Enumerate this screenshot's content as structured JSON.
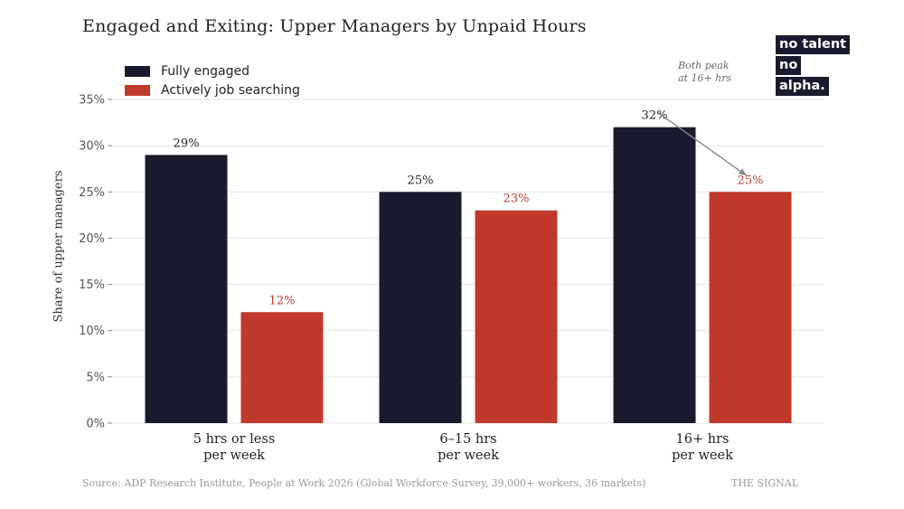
{
  "brand_logo": {
    "line1": "no talent",
    "line2": "no",
    "line3": "alpha."
  },
  "annotation": {
    "line1": "Both peak",
    "line2": "at 16+ hrs"
  },
  "source": "Source: ADP Research Institute, People at Work 2026 (Global Workforce Survey, 39,000+ workers, 36 markets)",
  "brand_footer": "THE SIGNAL",
  "colors": {
    "engaged": "#1b1b2f",
    "searching": "#c0392b",
    "grid": "#e6e6e6"
  },
  "chart_data": {
    "type": "bar",
    "title": "Engaged and Exiting: Upper Managers by Unpaid Hours",
    "xlabel": "",
    "ylabel": "Share of upper managers",
    "categories": [
      "5 hrs or less per week",
      "6–15 hrs per week",
      "16+ hrs per week"
    ],
    "category_lines": [
      [
        "5 hrs or less",
        "per week"
      ],
      [
        "6–15 hrs",
        "per week"
      ],
      [
        "16+ hrs",
        "per week"
      ]
    ],
    "series": [
      {
        "name": "Fully engaged",
        "values": [
          29,
          25,
          32
        ],
        "labels": [
          "29%",
          "25%",
          "32%"
        ]
      },
      {
        "name": "Actively job searching",
        "values": [
          12,
          23,
          25
        ],
        "labels": [
          "12%",
          "23%",
          "25%"
        ]
      }
    ],
    "ylim": [
      0,
      35
    ],
    "yticks": [
      0,
      5,
      10,
      15,
      20,
      25,
      30,
      35
    ],
    "ytick_labels": [
      "0%",
      "5%",
      "10%",
      "15%",
      "20%",
      "25%",
      "30%",
      "35%"
    ],
    "grid": true,
    "legend_position": "top-left"
  }
}
